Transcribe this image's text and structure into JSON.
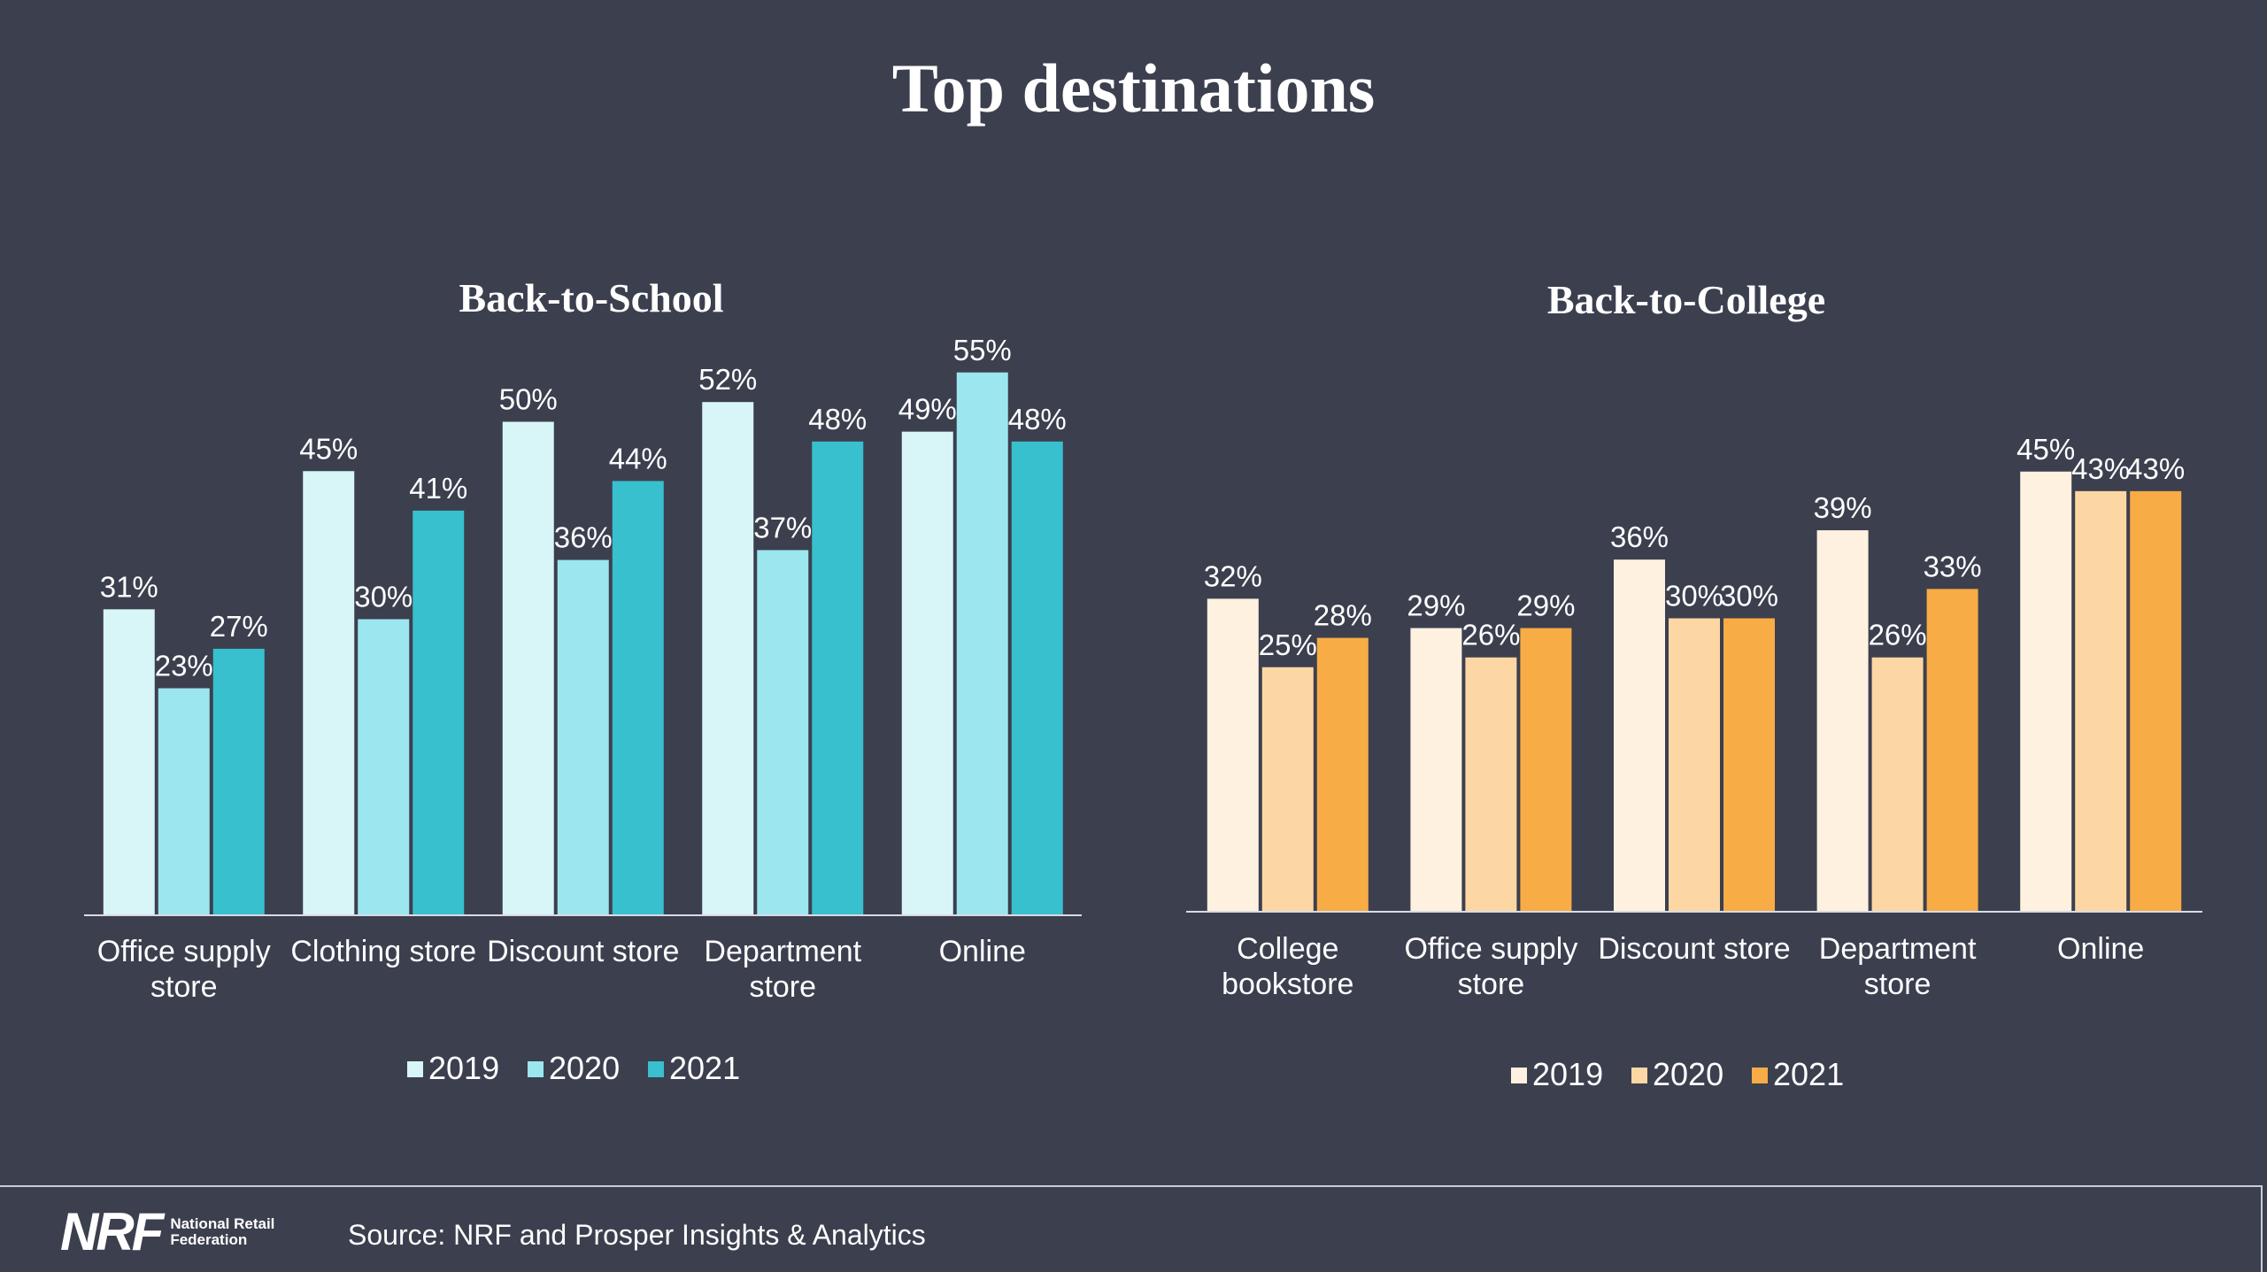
{
  "page": {
    "title": "Top destinations",
    "source": "Source: NRF and Prosper Insights & Analytics",
    "logo": {
      "mark": "NRF",
      "text": "National Retail Federation"
    }
  },
  "chart_data": [
    {
      "type": "bar",
      "title": "Back-to-School",
      "categories": [
        "Office supply store",
        "Clothing store",
        "Discount store",
        "Department store",
        "Online"
      ],
      "series": [
        {
          "name": "2019",
          "values": [
            31,
            45,
            50,
            52,
            49
          ],
          "color": "#d8f6f8"
        },
        {
          "name": "2020",
          "values": [
            23,
            30,
            36,
            37,
            55
          ],
          "color": "#9ce6ef"
        },
        {
          "name": "2021",
          "values": [
            27,
            41,
            44,
            48,
            48
          ],
          "color": "#38c0ce"
        }
      ],
      "value_suffix": "%",
      "ylim": [
        0,
        60
      ],
      "grid": false,
      "legend": "bottom"
    },
    {
      "type": "bar",
      "title": "Back-to-College",
      "categories": [
        "College bookstore",
        "Office supply store",
        "Discount store",
        "Department store",
        "Online"
      ],
      "series": [
        {
          "name": "2019",
          "values": [
            32,
            29,
            36,
            39,
            45
          ],
          "color": "#fef1e0"
        },
        {
          "name": "2020",
          "values": [
            25,
            26,
            30,
            26,
            43
          ],
          "color": "#fdd7a3"
        },
        {
          "name": "2021",
          "values": [
            28,
            29,
            30,
            33,
            43
          ],
          "color": "#f7ac45"
        }
      ],
      "value_suffix": "%",
      "ylim": [
        0,
        60
      ],
      "grid": false,
      "legend": "bottom"
    }
  ]
}
